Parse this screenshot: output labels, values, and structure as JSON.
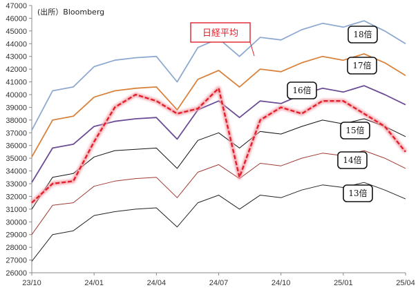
{
  "source_note": "(出所）Bloomberg",
  "chart_data": {
    "type": "line",
    "title": "",
    "xlabel": "",
    "ylabel": "",
    "ylim": [
      26000,
      47000
    ],
    "yticks": [
      26000,
      27000,
      28000,
      29000,
      30000,
      31000,
      32000,
      33000,
      34000,
      35000,
      36000,
      37000,
      38000,
      39000,
      40000,
      41000,
      42000,
      43000,
      44000,
      45000,
      46000,
      47000
    ],
    "ytick_labels": [
      "26000",
      "27000",
      "28000",
      "29000",
      "30000",
      "31000",
      "32000",
      "33000",
      "34000",
      "35000",
      "36000",
      "37000",
      "38000",
      "39000",
      "40000",
      "41000",
      "42000",
      "43000",
      "44000",
      "45000",
      "46000",
      "47000"
    ],
    "xticks": [
      "23/10",
      "24/01",
      "24/04",
      "24/07",
      "24/10",
      "25/01",
      "25/04"
    ],
    "x": [
      "23/10",
      "23/11",
      "23/12",
      "24/01",
      "24/02",
      "24/03",
      "24/04",
      "24/05",
      "24/06",
      "24/07",
      "24/08",
      "24/09",
      "24/10",
      "24/11",
      "24/12",
      "25/01",
      "25/02",
      "25/03",
      "25/04"
    ],
    "grid": false,
    "series": [
      {
        "name": "18倍",
        "color": "#8ea9d0",
        "values": [
          37200,
          40300,
          40600,
          42200,
          42700,
          42900,
          43000,
          41000,
          43700,
          44400,
          43000,
          44500,
          44300,
          45100,
          45600,
          45300,
          45800,
          45000,
          44000
        ]
      },
      {
        "name": "17倍",
        "color": "#d9823c",
        "values": [
          35100,
          38000,
          38300,
          39800,
          40300,
          40500,
          40600,
          38800,
          41200,
          41900,
          40600,
          42000,
          41800,
          42500,
          43000,
          42700,
          43200,
          42500,
          41500
        ]
      },
      {
        "name": "16倍",
        "color": "#6a4b95",
        "values": [
          33100,
          35800,
          36100,
          37500,
          37900,
          38100,
          38200,
          36500,
          38800,
          39500,
          38200,
          39500,
          39300,
          40000,
          40500,
          40200,
          40700,
          40000,
          39200
        ]
      },
      {
        "name": "15倍",
        "color": "#111111",
        "values": [
          31000,
          33500,
          33800,
          35100,
          35600,
          35700,
          35800,
          34200,
          36400,
          37000,
          35800,
          37100,
          36900,
          37500,
          38000,
          37700,
          38100,
          37500,
          36700
        ]
      },
      {
        "name": "14倍",
        "color": "#a03a32",
        "values": [
          29000,
          31300,
          31500,
          32800,
          33200,
          33400,
          33500,
          31900,
          33900,
          34500,
          33400,
          34600,
          34400,
          35000,
          35400,
          35200,
          35600,
          35000,
          34200
        ]
      },
      {
        "name": "13倍",
        "color": "#222222",
        "values": [
          26900,
          29000,
          29300,
          30500,
          30800,
          31000,
          31100,
          29600,
          31500,
          32100,
          31000,
          32100,
          31900,
          32500,
          32900,
          32700,
          33100,
          32500,
          31800
        ]
      },
      {
        "name": "日経平均",
        "color": "#e0202a",
        "values": [
          31500,
          33000,
          33200,
          36300,
          39000,
          40000,
          39500,
          38500,
          38900,
          40500,
          33500,
          38000,
          39000,
          38500,
          39500,
          39500,
          38500,
          37500,
          35500
        ]
      }
    ],
    "labels_boxed": [
      "18倍",
      "17倍",
      "16倍",
      "15倍",
      "14倍",
      "13倍"
    ],
    "label_nikkei": "日経平均"
  }
}
